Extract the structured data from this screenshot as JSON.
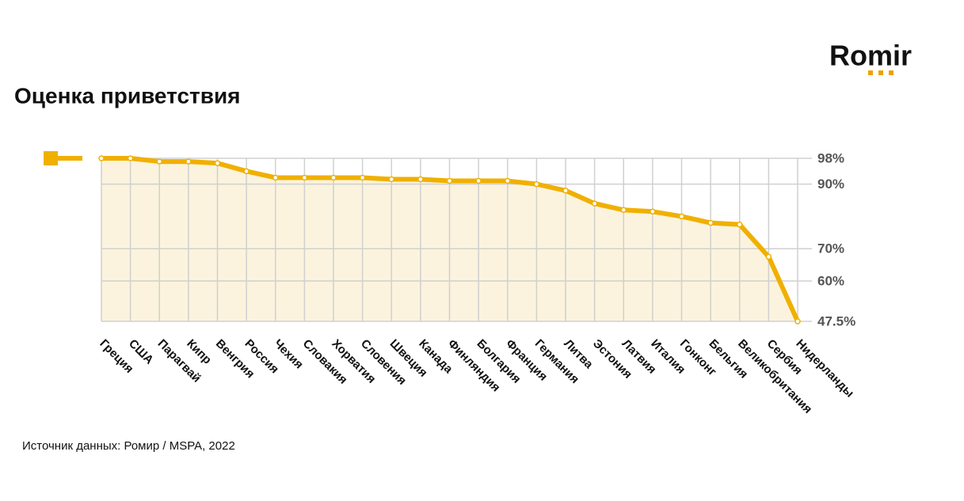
{
  "logo": "Romir",
  "chart_data": {
    "type": "line",
    "title": "Оценка приветствия",
    "source": "Источник данных: Ромир / MSPA, 2022",
    "categories": [
      "Греция",
      "США",
      "Парагвай",
      "Кипр",
      "Венгрия",
      "Россия",
      "Чехия",
      "Словакия",
      "Хорватия",
      "Словения",
      "Швеция",
      "Канада",
      "Финляндия",
      "Болгария",
      "Франция",
      "Германия",
      "Литва",
      "Эстония",
      "Латвия",
      "Италия",
      "Гонконг",
      "Бельгия",
      "Великобритания",
      "Сербия",
      "Нидерланды"
    ],
    "values": [
      98,
      98,
      97,
      97,
      96.5,
      94,
      92,
      92,
      92,
      92,
      91.5,
      91.5,
      91,
      91,
      91,
      90,
      88,
      84,
      82,
      81.5,
      80,
      78,
      77.5,
      67.5,
      47.5
    ],
    "color": "#f0b000",
    "area_color": "#fbf3dd",
    "ylim": [
      47.5,
      98
    ],
    "yticks": [
      {
        "value": 98,
        "label": "98%"
      },
      {
        "value": 90,
        "label": "90%"
      },
      {
        "value": 70,
        "label": "70%"
      },
      {
        "value": 60,
        "label": "60%"
      },
      {
        "value": 47.5,
        "label": "47.5%"
      }
    ],
    "grid": true
  }
}
